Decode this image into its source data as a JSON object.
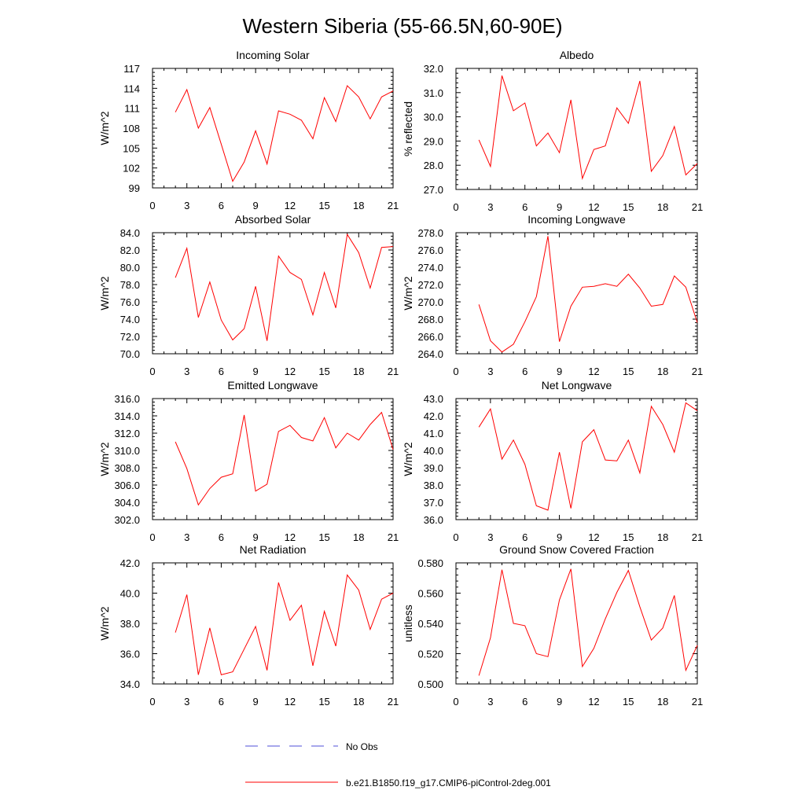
{
  "figure": {
    "title": "Western Siberia (55-66.5N,60-90E)"
  },
  "colors": {
    "model_line": "#ff0000",
    "obs_line": "#4f4fd9",
    "axis": "#000000"
  },
  "legend": [
    {
      "label": "No Obs",
      "style": "dashed",
      "color": "#4f4fd9"
    },
    {
      "label": "b.e21.B1850.f19_g17.CMIP6-piControl-2deg.001",
      "style": "solid",
      "color": "#ff0000"
    }
  ],
  "chart_data": [
    {
      "type": "line",
      "title": "Incoming Solar",
      "xlabel": "",
      "ylabel": "W/m^2",
      "xlim": [
        0,
        21
      ],
      "ylim": [
        99,
        117
      ],
      "x_ticks": [
        0,
        3,
        6,
        9,
        12,
        15,
        18,
        21
      ],
      "y_ticks": [
        "99",
        "102",
        "105",
        "108",
        "111",
        "114",
        "117"
      ],
      "x": [
        2,
        3,
        4,
        5,
        6,
        7,
        8,
        9,
        10,
        11,
        12,
        13,
        14,
        15,
        16,
        17,
        18,
        19,
        20,
        21
      ],
      "series": [
        {
          "values": [
            110.4,
            113.8,
            108.0,
            111.1,
            105.6,
            100.0,
            102.9,
            107.6,
            102.6,
            110.6,
            110.1,
            109.2,
            106.4,
            112.6,
            109.0,
            114.4,
            112.7,
            109.4,
            112.7,
            113.6
          ]
        }
      ]
    },
    {
      "type": "line",
      "title": "Albedo",
      "xlabel": "",
      "ylabel": "% reflected",
      "xlim": [
        0,
        21
      ],
      "ylim": [
        27.0,
        32.0
      ],
      "x_ticks": [
        0,
        3,
        6,
        9,
        12,
        15,
        18,
        21
      ],
      "y_ticks": [
        "27.0",
        "28.0",
        "29.0",
        "30.0",
        "31.0",
        "32.0"
      ],
      "x": [
        2,
        3,
        4,
        5,
        6,
        7,
        8,
        9,
        10,
        11,
        12,
        13,
        14,
        15,
        16,
        17,
        18,
        19,
        20,
        21
      ],
      "series": [
        {
          "values": [
            29.05,
            27.95,
            31.7,
            30.25,
            30.57,
            28.8,
            29.33,
            28.52,
            30.7,
            27.45,
            28.65,
            28.8,
            30.37,
            29.73,
            31.48,
            27.75,
            28.4,
            29.6,
            27.6,
            28.07
          ]
        }
      ]
    },
    {
      "type": "line",
      "title": "Absorbed Solar",
      "xlabel": "",
      "ylabel": "W/m^2",
      "xlim": [
        0,
        21
      ],
      "ylim": [
        70.0,
        84.0
      ],
      "x_ticks": [
        0,
        3,
        6,
        9,
        12,
        15,
        18,
        21
      ],
      "y_ticks": [
        "70.0",
        "72.0",
        "74.0",
        "76.0",
        "78.0",
        "80.0",
        "82.0",
        "84.0"
      ],
      "x": [
        2,
        3,
        4,
        5,
        6,
        7,
        8,
        9,
        10,
        11,
        12,
        13,
        14,
        15,
        16,
        17,
        18,
        19,
        20,
        21
      ],
      "series": [
        {
          "values": [
            78.8,
            82.2,
            74.2,
            78.3,
            73.9,
            71.6,
            72.9,
            77.8,
            71.5,
            81.3,
            79.4,
            78.6,
            74.5,
            79.4,
            75.3,
            83.8,
            81.7,
            77.6,
            82.3,
            82.4
          ]
        }
      ]
    },
    {
      "type": "line",
      "title": "Incoming Longwave",
      "xlabel": "",
      "ylabel": "W/m^2",
      "xlim": [
        0,
        21
      ],
      "ylim": [
        264.0,
        278.0
      ],
      "x_ticks": [
        0,
        3,
        6,
        9,
        12,
        15,
        18,
        21
      ],
      "y_ticks": [
        "264.0",
        "266.0",
        "268.0",
        "270.0",
        "272.0",
        "274.0",
        "276.0",
        "278.0"
      ],
      "x": [
        2,
        3,
        4,
        5,
        6,
        7,
        8,
        9,
        10,
        11,
        12,
        13,
        14,
        15,
        16,
        17,
        18,
        19,
        20,
        21
      ],
      "series": [
        {
          "values": [
            269.7,
            265.5,
            264.2,
            265.1,
            267.7,
            270.6,
            277.6,
            265.4,
            269.5,
            271.7,
            271.8,
            272.1,
            271.8,
            273.2,
            271.6,
            269.5,
            269.7,
            273.0,
            271.7,
            267.6
          ]
        }
      ]
    },
    {
      "type": "line",
      "title": "Emitted Longwave",
      "xlabel": "",
      "ylabel": "W/m^2",
      "xlim": [
        0,
        21
      ],
      "ylim": [
        302.0,
        316.0
      ],
      "x_ticks": [
        0,
        3,
        6,
        9,
        12,
        15,
        18,
        21
      ],
      "y_ticks": [
        "302.0",
        "304.0",
        "306.0",
        "308.0",
        "310.0",
        "312.0",
        "314.0",
        "316.0"
      ],
      "x": [
        2,
        3,
        4,
        5,
        6,
        7,
        8,
        9,
        10,
        11,
        12,
        13,
        14,
        15,
        16,
        17,
        18,
        19,
        20,
        21
      ],
      "series": [
        {
          "values": [
            311.0,
            307.9,
            303.7,
            305.6,
            306.9,
            307.3,
            314.1,
            305.3,
            306.1,
            312.2,
            312.9,
            311.5,
            311.1,
            313.8,
            310.3,
            312.0,
            311.2,
            313.0,
            314.4,
            310.1
          ]
        }
      ]
    },
    {
      "type": "line",
      "title": "Net Longwave",
      "xlabel": "",
      "ylabel": "W/m^2",
      "xlim": [
        0,
        21
      ],
      "ylim": [
        36.0,
        43.0
      ],
      "x_ticks": [
        0,
        3,
        6,
        9,
        12,
        15,
        18,
        21
      ],
      "y_ticks": [
        "36.0",
        "37.0",
        "38.0",
        "39.0",
        "40.0",
        "41.0",
        "42.0",
        "43.0"
      ],
      "x": [
        2,
        3,
        4,
        5,
        6,
        7,
        8,
        9,
        10,
        11,
        12,
        13,
        14,
        15,
        16,
        17,
        18,
        19,
        20,
        21
      ],
      "series": [
        {
          "values": [
            41.35,
            42.4,
            39.5,
            40.6,
            39.2,
            36.8,
            36.55,
            39.9,
            36.65,
            40.5,
            41.2,
            39.45,
            39.4,
            40.6,
            38.7,
            42.55,
            41.5,
            39.9,
            42.75,
            42.3
          ]
        }
      ]
    },
    {
      "type": "line",
      "title": "Net Radiation",
      "xlabel": "",
      "ylabel": "W/m^2",
      "xlim": [
        0,
        21
      ],
      "ylim": [
        34.0,
        42.0
      ],
      "x_ticks": [
        0,
        3,
        6,
        9,
        12,
        15,
        18,
        21
      ],
      "y_ticks": [
        "34.0",
        "36.0",
        "38.0",
        "40.0",
        "42.0"
      ],
      "x": [
        2,
        3,
        4,
        5,
        6,
        7,
        8,
        9,
        10,
        11,
        12,
        13,
        14,
        15,
        16,
        17,
        18,
        19,
        20,
        21
      ],
      "series": [
        {
          "values": [
            37.4,
            39.9,
            34.6,
            37.7,
            34.6,
            34.8,
            36.3,
            37.8,
            34.9,
            40.7,
            38.2,
            39.2,
            35.2,
            38.8,
            36.5,
            41.2,
            40.2,
            37.6,
            39.6,
            40.0
          ]
        }
      ]
    },
    {
      "type": "line",
      "title": "Ground Snow Covered Fraction",
      "xlabel": "",
      "ylabel": "unitless",
      "xlim": [
        0,
        21
      ],
      "ylim": [
        0.5,
        0.58
      ],
      "x_ticks": [
        0,
        3,
        6,
        9,
        12,
        15,
        18,
        21
      ],
      "y_ticks": [
        "0.500",
        "0.520",
        "0.540",
        "0.560",
        "0.580"
      ],
      "x": [
        2,
        3,
        4,
        5,
        6,
        7,
        8,
        9,
        10,
        11,
        12,
        13,
        14,
        15,
        16,
        17,
        18,
        19,
        20,
        21
      ],
      "series": [
        {
          "values": [
            0.5055,
            0.5305,
            0.5755,
            0.54,
            0.5385,
            0.52,
            0.518,
            0.5555,
            0.576,
            0.5115,
            0.5235,
            0.543,
            0.5605,
            0.575,
            0.551,
            0.529,
            0.537,
            0.5585,
            0.509,
            0.5255
          ]
        }
      ]
    }
  ]
}
